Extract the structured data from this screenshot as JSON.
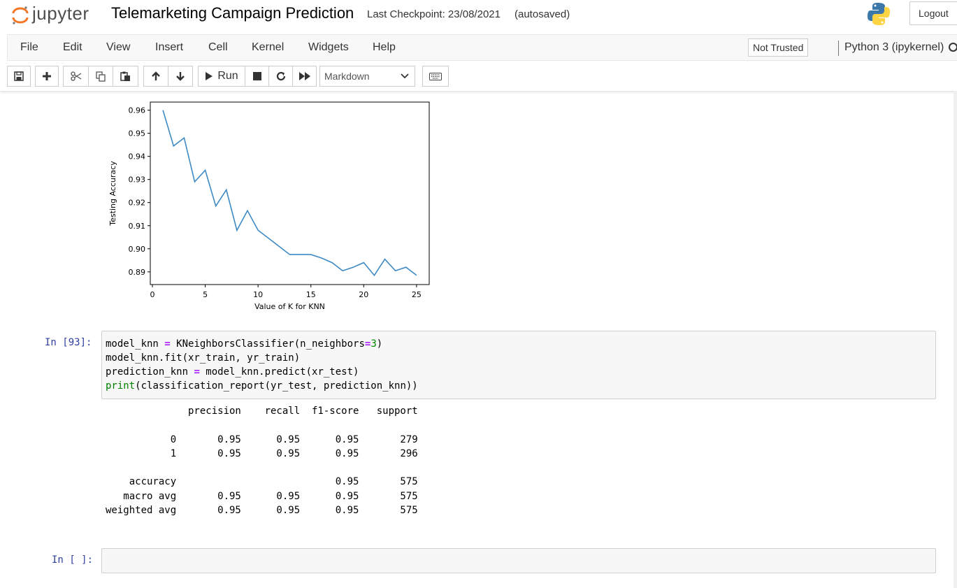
{
  "header": {
    "logo_text": "jupyter",
    "notebook_title": "Telemarketing Campaign Prediction",
    "checkpoint": "Last Checkpoint: 23/08/2021",
    "autosave": "(autosaved)",
    "logout_label": "Logout"
  },
  "menubar": {
    "items": [
      "File",
      "Edit",
      "View",
      "Insert",
      "Cell",
      "Kernel",
      "Widgets",
      "Help"
    ],
    "trust_label": "Not Trusted",
    "kernel_label": "Python 3 (ipykernel)"
  },
  "toolbar": {
    "run_label": "Run",
    "cell_type": "Markdown",
    "icons": [
      "save-icon",
      "plus-icon",
      "scissors-icon",
      "copy-icon",
      "paste-icon",
      "arrow-up-icon",
      "arrow-down-icon",
      "run-icon",
      "stop-icon",
      "restart-icon",
      "fast-forward-icon",
      "keyboard-icon"
    ]
  },
  "chart_data": {
    "type": "line",
    "xlabel": "Value of K for KNN",
    "ylabel": "Testing Accuracy",
    "x": [
      1,
      2,
      3,
      4,
      5,
      6,
      7,
      8,
      9,
      10,
      11,
      12,
      13,
      14,
      15,
      16,
      17,
      18,
      19,
      20,
      21,
      22,
      23,
      24,
      25
    ],
    "y": [
      0.96,
      0.9445,
      0.948,
      0.929,
      0.934,
      0.9185,
      0.9255,
      0.908,
      0.9165,
      0.908,
      0.9045,
      0.901,
      0.8975,
      0.8975,
      0.8975,
      0.896,
      0.894,
      0.8905,
      0.892,
      0.894,
      0.8885,
      0.8955,
      0.8905,
      0.892,
      0.8885
    ],
    "xlim": [
      -0.2,
      26.2
    ],
    "ylim": [
      0.8845,
      0.9635
    ],
    "xticks": [
      0,
      5,
      10,
      15,
      20,
      25
    ],
    "xtick_labels": [
      "0",
      "5",
      "10",
      "15",
      "20",
      "25"
    ],
    "yticks": [
      0.89,
      0.9,
      0.91,
      0.92,
      0.93,
      0.94,
      0.95,
      0.96
    ],
    "ytick_labels": [
      "0.89",
      "0.90",
      "0.91",
      "0.92",
      "0.93",
      "0.94",
      "0.95",
      "0.96"
    ],
    "line_color": "#3e8ac4",
    "grid": false
  },
  "cells": {
    "cell1": {
      "prompt": "In [93]:",
      "code": [
        "model_knn = KNeighborsClassifier(n_neighbors=3)",
        "model_knn.fit(xr_train, yr_train)",
        "prediction_knn = model_knn.predict(xr_test)",
        "print(classification_report(yr_test, prediction_knn))"
      ],
      "output": "              precision    recall  f1-score   support\n\n           0       0.95      0.95      0.95       279\n           1       0.95      0.95      0.95       296\n\n    accuracy                           0.95       575\n   macro avg       0.95      0.95      0.95       575\nweighted avg       0.95      0.95      0.95       575"
    },
    "cell2": {
      "prompt": "In [ ]:"
    }
  }
}
